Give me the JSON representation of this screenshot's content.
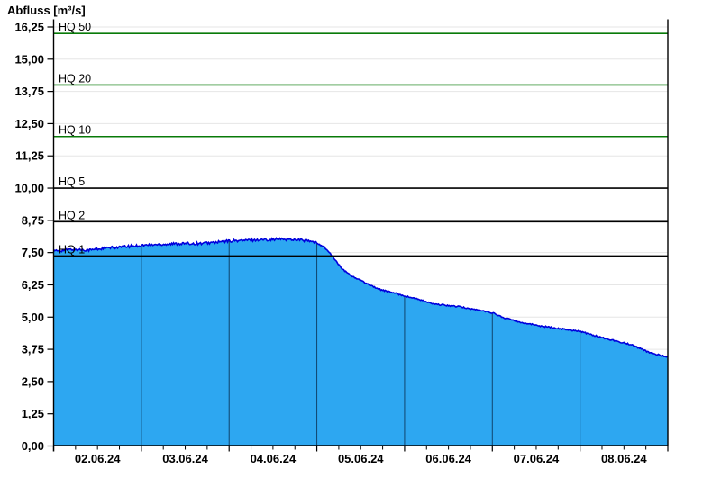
{
  "chart_data": {
    "type": "area",
    "title": "Abfluss [m³/s]",
    "series_name": "Abfluss",
    "unit": "m³/s",
    "x_tick_labels": [
      "02.06.24",
      "03.06.24",
      "04.06.24",
      "05.06.24",
      "06.06.24",
      "07.06.24",
      "08.06.24"
    ],
    "x_range_days": 7,
    "x_subdivisions_per_day": 4,
    "ylim": [
      0,
      16.25
    ],
    "grid": "horizontal-light",
    "legend": "none",
    "y_ticks": [
      {
        "value": 0.0,
        "label": "0,00"
      },
      {
        "value": 1.25,
        "label": "1,25"
      },
      {
        "value": 2.5,
        "label": "2,50"
      },
      {
        "value": 3.75,
        "label": "3,75"
      },
      {
        "value": 5.0,
        "label": "5,00"
      },
      {
        "value": 6.25,
        "label": "6,25"
      },
      {
        "value": 7.5,
        "label": "7,50"
      },
      {
        "value": 8.75,
        "label": "8,75"
      },
      {
        "value": 10.0,
        "label": "10,00"
      },
      {
        "value": 11.25,
        "label": "11,25"
      },
      {
        "value": 12.5,
        "label": "12,50"
      },
      {
        "value": 13.75,
        "label": "13,75"
      },
      {
        "value": 15.0,
        "label": "15,00"
      },
      {
        "value": 16.25,
        "label": "16,25"
      }
    ],
    "reference_lines": [
      {
        "label": "HQ 50",
        "value": 16.0,
        "color": "#087A08"
      },
      {
        "label": "HQ 20",
        "value": 14.0,
        "color": "#087A08"
      },
      {
        "label": "HQ 10",
        "value": 12.0,
        "color": "#087A08"
      },
      {
        "label": "HQ 5",
        "value": 10.0,
        "color": "#000000"
      },
      {
        "label": "HQ 2",
        "value": 8.7,
        "color": "#000000"
      },
      {
        "label": "HQ 1",
        "value": 7.37,
        "color": "#000000"
      }
    ],
    "series": [
      {
        "name": "Abfluss",
        "x_hours": [
          0,
          5,
          10,
          15,
          20,
          24,
          30,
          35,
          40,
          44,
          48,
          52,
          57,
          62,
          67,
          70,
          72,
          74,
          76,
          79,
          82,
          84,
          89,
          93,
          96,
          100,
          104,
          107,
          111,
          115,
          120,
          123,
          128,
          133,
          138,
          144,
          148,
          153,
          158,
          163,
          168
        ],
        "values": [
          7.55,
          7.62,
          7.6,
          7.68,
          7.73,
          7.78,
          7.82,
          7.85,
          7.85,
          7.89,
          7.95,
          7.97,
          8.0,
          8.02,
          8.0,
          7.94,
          7.87,
          7.72,
          7.4,
          6.85,
          6.55,
          6.42,
          6.08,
          5.94,
          5.82,
          5.68,
          5.5,
          5.46,
          5.4,
          5.3,
          5.17,
          4.98,
          4.79,
          4.66,
          4.56,
          4.45,
          4.28,
          4.1,
          3.93,
          3.62,
          3.45
        ]
      }
    ],
    "colors": {
      "area_fill": "#2DA7F1",
      "area_line": "#0000DC",
      "grid_line": "#E6E6E6",
      "axis": "#000000",
      "day_divider": "rgba(5,35,64,0.75)",
      "hq_green": "#087A08",
      "hq_black": "#000000"
    }
  }
}
